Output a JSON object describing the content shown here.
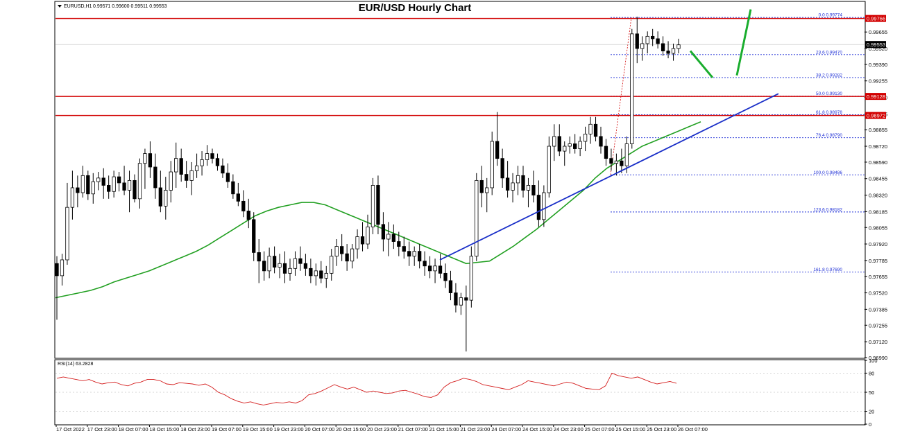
{
  "chart_data": {
    "type": "candlestick",
    "title": "EUR/USD Hourly Chart",
    "symbol_header": {
      "symbol": "EURUSD,H1",
      "ohlc": "0.99571 0.99600 0.99511 0.99553"
    },
    "price_axis": {
      "min": 0.9699,
      "max": 0.999,
      "ticks": [
        "0.99655",
        "0.99520",
        "0.99390",
        "0.99255",
        "0.99120",
        "0.98985",
        "0.98855",
        "0.98720",
        "0.98590",
        "0.98455",
        "0.98320",
        "0.98185",
        "0.98055",
        "0.97920",
        "0.97785",
        "0.97655",
        "0.97520",
        "0.97385",
        "0.97255",
        "0.97120",
        "0.96990"
      ]
    },
    "time_axis": {
      "labels": [
        "17 Oct 2022",
        "17 Oct 23:00",
        "18 Oct 07:00",
        "18 Oct 15:00",
        "18 Oct 23:00",
        "19 Oct 07:00",
        "19 Oct 15:00",
        "19 Oct 23:00",
        "20 Oct 07:00",
        "20 Oct 15:00",
        "20 Oct 23:00",
        "21 Oct 07:00",
        "21 Oct 15:00",
        "21 Oct 23:00",
        "24 Oct 07:00",
        "24 Oct 15:00",
        "24 Oct 23:00",
        "25 Oct 07:00",
        "25 Oct 15:00",
        "25 Oct 23:00",
        "26 Oct 07:00"
      ]
    },
    "candles": [
      [
        0.9776,
        0.9782,
        0.973,
        0.9766
      ],
      [
        0.9766,
        0.9784,
        0.9758,
        0.9779
      ],
      [
        0.9779,
        0.9842,
        0.9775,
        0.9822
      ],
      [
        0.9822,
        0.9852,
        0.9812,
        0.9838
      ],
      [
        0.9838,
        0.9848,
        0.9822,
        0.9834
      ],
      [
        0.9834,
        0.9856,
        0.983,
        0.9848
      ],
      [
        0.9848,
        0.9852,
        0.9828,
        0.9833
      ],
      [
        0.9833,
        0.985,
        0.9825,
        0.9843
      ],
      [
        0.9843,
        0.9851,
        0.9836,
        0.9846
      ],
      [
        0.9846,
        0.9854,
        0.9829,
        0.984
      ],
      [
        0.984,
        0.9848,
        0.9829,
        0.9835
      ],
      [
        0.9835,
        0.9852,
        0.983,
        0.9847
      ],
      [
        0.9847,
        0.9851,
        0.9835,
        0.9842
      ],
      [
        0.9842,
        0.9856,
        0.9832,
        0.9836
      ],
      [
        0.9836,
        0.9852,
        0.9818,
        0.9844
      ],
      [
        0.9844,
        0.9849,
        0.9826,
        0.9829
      ],
      [
        0.9829,
        0.9862,
        0.9821,
        0.9858
      ],
      [
        0.9858,
        0.987,
        0.9837,
        0.9866
      ],
      [
        0.9866,
        0.9876,
        0.9846,
        0.9855
      ],
      [
        0.9855,
        0.9866,
        0.9829,
        0.9838
      ],
      [
        0.9838,
        0.9852,
        0.9818,
        0.9823
      ],
      [
        0.9823,
        0.9847,
        0.9812,
        0.9836
      ],
      [
        0.9836,
        0.986,
        0.9826,
        0.9851
      ],
      [
        0.9851,
        0.9875,
        0.9838,
        0.9862
      ],
      [
        0.9862,
        0.987,
        0.9843,
        0.9849
      ],
      [
        0.9849,
        0.986,
        0.9838,
        0.9844
      ],
      [
        0.9844,
        0.9859,
        0.9832,
        0.9852
      ],
      [
        0.9852,
        0.9866,
        0.9846,
        0.9856
      ],
      [
        0.9856,
        0.9868,
        0.9848,
        0.9861
      ],
      [
        0.9861,
        0.9873,
        0.9856,
        0.9866
      ],
      [
        0.9866,
        0.987,
        0.9858,
        0.9862
      ],
      [
        0.9862,
        0.9866,
        0.9852,
        0.9856
      ],
      [
        0.9856,
        0.9862,
        0.9846,
        0.985
      ],
      [
        0.985,
        0.9858,
        0.9838,
        0.9843
      ],
      [
        0.9843,
        0.9849,
        0.9829,
        0.9833
      ],
      [
        0.9833,
        0.9842,
        0.9823,
        0.9827
      ],
      [
        0.9827,
        0.9836,
        0.9814,
        0.9819
      ],
      [
        0.9819,
        0.9829,
        0.9805,
        0.9812
      ],
      [
        0.9812,
        0.9818,
        0.9778,
        0.9785
      ],
      [
        0.9785,
        0.9796,
        0.976,
        0.9778
      ],
      [
        0.9778,
        0.9786,
        0.9762,
        0.977
      ],
      [
        0.977,
        0.9789,
        0.9764,
        0.9782
      ],
      [
        0.9782,
        0.979,
        0.9768,
        0.9773
      ],
      [
        0.9773,
        0.9784,
        0.9764,
        0.9776
      ],
      [
        0.9776,
        0.9786,
        0.976,
        0.9768
      ],
      [
        0.9768,
        0.978,
        0.9762,
        0.9772
      ],
      [
        0.9772,
        0.9786,
        0.9766,
        0.978
      ],
      [
        0.978,
        0.979,
        0.977,
        0.9776
      ],
      [
        0.9776,
        0.9784,
        0.9766,
        0.9772
      ],
      [
        0.9772,
        0.978,
        0.976,
        0.9766
      ],
      [
        0.9766,
        0.9776,
        0.9758,
        0.977
      ],
      [
        0.977,
        0.9778,
        0.976,
        0.9764
      ],
      [
        0.9764,
        0.9774,
        0.9756,
        0.9768
      ],
      [
        0.9768,
        0.9788,
        0.9762,
        0.9782
      ],
      [
        0.9782,
        0.9796,
        0.9774,
        0.979
      ],
      [
        0.979,
        0.98,
        0.9778,
        0.9784
      ],
      [
        0.9784,
        0.9792,
        0.977,
        0.9778
      ],
      [
        0.9778,
        0.9792,
        0.9772,
        0.9788
      ],
      [
        0.9788,
        0.9804,
        0.978,
        0.9798
      ],
      [
        0.9798,
        0.981,
        0.9786,
        0.9792
      ],
      [
        0.9792,
        0.9816,
        0.9788,
        0.9806
      ],
      [
        0.9806,
        0.9846,
        0.98,
        0.984
      ],
      [
        0.984,
        0.9848,
        0.98,
        0.9808
      ],
      [
        0.9808,
        0.9818,
        0.9786,
        0.9796
      ],
      [
        0.9796,
        0.981,
        0.9782,
        0.98
      ],
      [
        0.98,
        0.9808,
        0.9788,
        0.9794
      ],
      [
        0.9794,
        0.9802,
        0.9782,
        0.979
      ],
      [
        0.979,
        0.9798,
        0.978,
        0.9786
      ],
      [
        0.9786,
        0.9794,
        0.9774,
        0.9782
      ],
      [
        0.9782,
        0.979,
        0.9774,
        0.9786
      ],
      [
        0.9786,
        0.9792,
        0.9772,
        0.9778
      ],
      [
        0.9778,
        0.9786,
        0.9766,
        0.9774
      ],
      [
        0.9774,
        0.9782,
        0.9764,
        0.977
      ],
      [
        0.977,
        0.978,
        0.976,
        0.9774
      ],
      [
        0.9774,
        0.9784,
        0.9764,
        0.9768
      ],
      [
        0.9768,
        0.9776,
        0.9756,
        0.9762
      ],
      [
        0.9762,
        0.977,
        0.9746,
        0.9752
      ],
      [
        0.9752,
        0.976,
        0.9736,
        0.9742
      ],
      [
        0.9742,
        0.9752,
        0.9734,
        0.9748
      ],
      [
        0.9748,
        0.9758,
        0.9704,
        0.9746
      ],
      [
        0.9746,
        0.979,
        0.974,
        0.9782
      ],
      [
        0.9782,
        0.985,
        0.9778,
        0.9844
      ],
      [
        0.9844,
        0.9856,
        0.9822,
        0.9834
      ],
      [
        0.9834,
        0.9846,
        0.9818,
        0.9838
      ],
      [
        0.9838,
        0.9884,
        0.9832,
        0.9876
      ],
      [
        0.9876,
        0.99,
        0.9856,
        0.9862
      ],
      [
        0.9862,
        0.987,
        0.9838,
        0.9846
      ],
      [
        0.9846,
        0.986,
        0.983,
        0.9836
      ],
      [
        0.9836,
        0.985,
        0.9826,
        0.9842
      ],
      [
        0.9842,
        0.9856,
        0.9832,
        0.9848
      ],
      [
        0.9848,
        0.9856,
        0.983,
        0.9836
      ],
      [
        0.9836,
        0.9846,
        0.9822,
        0.984
      ],
      [
        0.984,
        0.9852,
        0.9826,
        0.9832
      ],
      [
        0.9832,
        0.9844,
        0.9806,
        0.9812
      ],
      [
        0.9812,
        0.984,
        0.9806,
        0.9834
      ],
      [
        0.9834,
        0.988,
        0.983,
        0.9872
      ],
      [
        0.9872,
        0.989,
        0.986,
        0.988
      ],
      [
        0.988,
        0.989,
        0.9864,
        0.9868
      ],
      [
        0.9868,
        0.9876,
        0.9856,
        0.9872
      ],
      [
        0.9872,
        0.988,
        0.9866,
        0.9874
      ],
      [
        0.9874,
        0.9882,
        0.9866,
        0.987
      ],
      [
        0.987,
        0.988,
        0.9864,
        0.9876
      ],
      [
        0.9876,
        0.9888,
        0.9868,
        0.9882
      ],
      [
        0.9882,
        0.9896,
        0.9874,
        0.989
      ],
      [
        0.989,
        0.9896,
        0.9876,
        0.988
      ],
      [
        0.988,
        0.9888,
        0.9866,
        0.9872
      ],
      [
        0.9872,
        0.9878,
        0.9856,
        0.9862
      ],
      [
        0.9862,
        0.987,
        0.9852,
        0.9858
      ],
      [
        0.9858,
        0.9866,
        0.9848,
        0.986
      ],
      [
        0.986,
        0.987,
        0.985,
        0.9856
      ],
      [
        0.9856,
        0.988,
        0.985,
        0.9874
      ],
      [
        0.9874,
        0.9968,
        0.987,
        0.9964
      ],
      [
        0.9964,
        0.9978,
        0.994,
        0.9952
      ],
      [
        0.9952,
        0.9962,
        0.9942,
        0.9956
      ],
      [
        0.9956,
        0.9966,
        0.9948,
        0.9962
      ],
      [
        0.9962,
        0.9968,
        0.9954,
        0.996
      ],
      [
        0.996,
        0.9966,
        0.9952,
        0.9956
      ],
      [
        0.9956,
        0.9962,
        0.9946,
        0.995
      ],
      [
        0.995,
        0.9958,
        0.9944,
        0.9948
      ],
      [
        0.9948,
        0.9956,
        0.9942,
        0.9952
      ],
      [
        0.9952,
        0.996,
        0.9948,
        0.9955
      ]
    ],
    "moving_average": [
      0.9748,
      0.975,
      0.9752,
      0.9754,
      0.9757,
      0.9761,
      0.9764,
      0.9767,
      0.977,
      0.9774,
      0.9778,
      0.9782,
      0.9786,
      0.9791,
      0.9797,
      0.9803,
      0.9809,
      0.9815,
      0.9819,
      0.9822,
      0.9824,
      0.9826,
      0.9826,
      0.9824,
      0.982,
      0.9816,
      0.9812,
      0.9808,
      0.9804,
      0.98,
      0.9796,
      0.9792,
      0.9788,
      0.9784,
      0.978,
      0.9776,
      0.9777,
      0.9778,
      0.9784,
      0.979,
      0.9797,
      0.9804,
      0.9812,
      0.982,
      0.9828,
      0.9836,
      0.9846,
      0.9854,
      0.986,
      0.9866,
      0.9872,
      0.9876,
      0.988,
      0.9884,
      0.9888,
      0.9892
    ],
    "levels": {
      "resistance": [
        0.99766,
        0.99128,
        0.98972
      ],
      "current_price": 0.99553,
      "resistance_tags": [
        "0.99766",
        "0.99128",
        "0.98972"
      ],
      "price_tag": "0.99553"
    },
    "fibonacci": [
      {
        "label": "0.0 0.99774",
        "price": 0.99774
      },
      {
        "label": "23.6 0.99470",
        "price": 0.9947
      },
      {
        "label": "38.2 0.99282",
        "price": 0.99282
      },
      {
        "label": "50.0 0.99130",
        "price": 0.9913
      },
      {
        "label": "61.8 0.98978",
        "price": 0.98978
      },
      {
        "label": "76.4 0.98790",
        "price": 0.9879
      },
      {
        "label": "100.0 0.98486",
        "price": 0.98486
      },
      {
        "label": "123.6 0.98182",
        "price": 0.98182
      },
      {
        "label": "161.8 0.97690",
        "price": 0.9769
      }
    ],
    "trendline": {
      "from": [
        0.0,
        0.9779
      ],
      "to": [
        1.0,
        0.9915
      ]
    },
    "rsi": {
      "header": "RSI(14) 63.2828",
      "ticks": [
        "100",
        "80",
        "50",
        "20",
        "0"
      ],
      "values": [
        72,
        74,
        72,
        70,
        68,
        70,
        66,
        63,
        65,
        66,
        62,
        60,
        64,
        66,
        70,
        70,
        68,
        63,
        62,
        65,
        64,
        63,
        61,
        63,
        58,
        50,
        46,
        40,
        36,
        33,
        35,
        32,
        30,
        32,
        34,
        33,
        35,
        33,
        37,
        46,
        48,
        52,
        57,
        62,
        58,
        55,
        58,
        54,
        50,
        52,
        50,
        48,
        49,
        52,
        53,
        50,
        47,
        43,
        42,
        46,
        58,
        65,
        68,
        72,
        70,
        67,
        62,
        60,
        58,
        56,
        54,
        58,
        62,
        68,
        66,
        64,
        62,
        60,
        63,
        66,
        64,
        60,
        56,
        55,
        54,
        60,
        80,
        76,
        74,
        72,
        74,
        70,
        66,
        63,
        65,
        67,
        64
      ]
    },
    "colors": {
      "bull_body": "#ffffff",
      "bear_body": "#000000",
      "candle_line": "#000000",
      "resistance": "#d20000",
      "fib": "#1e2fd6",
      "trendline": "#1a2fc8",
      "ma": "#22a022",
      "rsi": "#d41c1c",
      "arrow": "#1aad2e",
      "border": "#000000",
      "grid": "#c8c8c8"
    }
  }
}
